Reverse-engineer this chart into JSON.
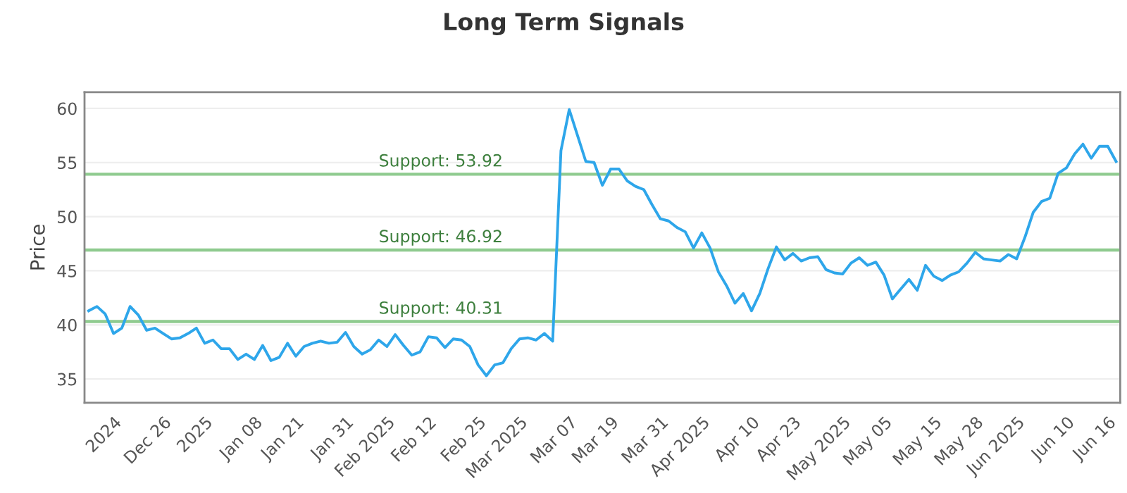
{
  "chart_data": {
    "type": "line",
    "title": "Long Term Signals",
    "ylabel": "Price",
    "categories": [
      null,
      null,
      null,
      "2024",
      null,
      null,
      null,
      null,
      null,
      "Dec 26",
      null,
      null,
      null,
      null,
      "2025",
      null,
      null,
      null,
      null,
      null,
      "Jan 08",
      null,
      null,
      null,
      null,
      "Jan 21",
      null,
      null,
      null,
      null,
      null,
      "Jan 31",
      null,
      null,
      null,
      null,
      "Feb 2025",
      null,
      null,
      null,
      null,
      "Feb 12",
      null,
      null,
      null,
      null,
      null,
      "Feb 25",
      null,
      null,
      null,
      null,
      "Mar 2025",
      null,
      null,
      null,
      null,
      null,
      "Mar 07",
      null,
      null,
      null,
      null,
      "Mar 19",
      null,
      null,
      null,
      null,
      null,
      "Mar 31",
      null,
      null,
      null,
      null,
      "Apr 2025",
      null,
      null,
      null,
      null,
      null,
      "Apr 10",
      null,
      null,
      null,
      null,
      "Apr 23",
      null,
      null,
      null,
      null,
      null,
      "May 2025",
      null,
      null,
      null,
      null,
      "May 05",
      null,
      null,
      null,
      null,
      null,
      "May 15",
      null,
      null,
      null,
      null,
      "May 28",
      null,
      null,
      null,
      null,
      "Jun 2025",
      null,
      null,
      null,
      null,
      null,
      "Jun 10",
      null,
      null,
      null,
      null,
      "Jun 16",
      null
    ],
    "series": [
      {
        "color": "#2ea6ea",
        "values": [
          41.3,
          41.7,
          41.0,
          39.2,
          39.7,
          41.7,
          40.9,
          39.5,
          39.7,
          39.2,
          38.7,
          38.8,
          39.2,
          39.7,
          38.3,
          38.6,
          37.8,
          37.8,
          36.8,
          37.3,
          36.8,
          38.1,
          36.7,
          37.0,
          38.3,
          37.1,
          38.0,
          38.3,
          38.5,
          38.3,
          38.4,
          39.3,
          38.0,
          37.3,
          37.7,
          38.6,
          38.0,
          39.1,
          38.1,
          37.2,
          37.5,
          38.9,
          38.8,
          37.9,
          38.7,
          38.6,
          38.0,
          36.3,
          35.3,
          36.3,
          36.5,
          37.8,
          38.7,
          38.8,
          38.6,
          39.2,
          38.5,
          56.1,
          59.9,
          57.5,
          55.1,
          55.0,
          52.9,
          54.4,
          54.4,
          53.3,
          52.8,
          52.5,
          51.1,
          49.8,
          49.6,
          49.0,
          48.6,
          47.1,
          48.5,
          47.1,
          44.9,
          43.6,
          42.0,
          42.9,
          41.3,
          42.9,
          45.2,
          47.2,
          46.0,
          46.6,
          45.9,
          46.2,
          46.3,
          45.1,
          44.8,
          44.7,
          45.7,
          46.2,
          45.5,
          45.8,
          44.6,
          42.4,
          43.3,
          44.2,
          43.2,
          45.5,
          44.5,
          44.1,
          44.6,
          44.9,
          45.7,
          46.7,
          46.1,
          46.0,
          45.9,
          46.5,
          46.1,
          48.1,
          50.4,
          51.4,
          51.7,
          54.0,
          54.5,
          55.8,
          56.7,
          55.4,
          56.5,
          56.5,
          55.1
        ]
      }
    ],
    "ylim": [
      32.8,
      61.5
    ],
    "yticks": [
      35,
      40,
      45,
      50,
      55,
      60
    ],
    "grid": "y",
    "ref_lines": [
      {
        "axis": "y",
        "value": 53.92,
        "label": "Support: 53.92",
        "color": "#8fcb8f"
      },
      {
        "axis": "y",
        "value": 46.92,
        "label": "Support: 46.92",
        "color": "#8fcb8f"
      },
      {
        "axis": "y",
        "value": 40.31,
        "label": "Support: 40.31",
        "color": "#8fcb8f"
      }
    ]
  }
}
